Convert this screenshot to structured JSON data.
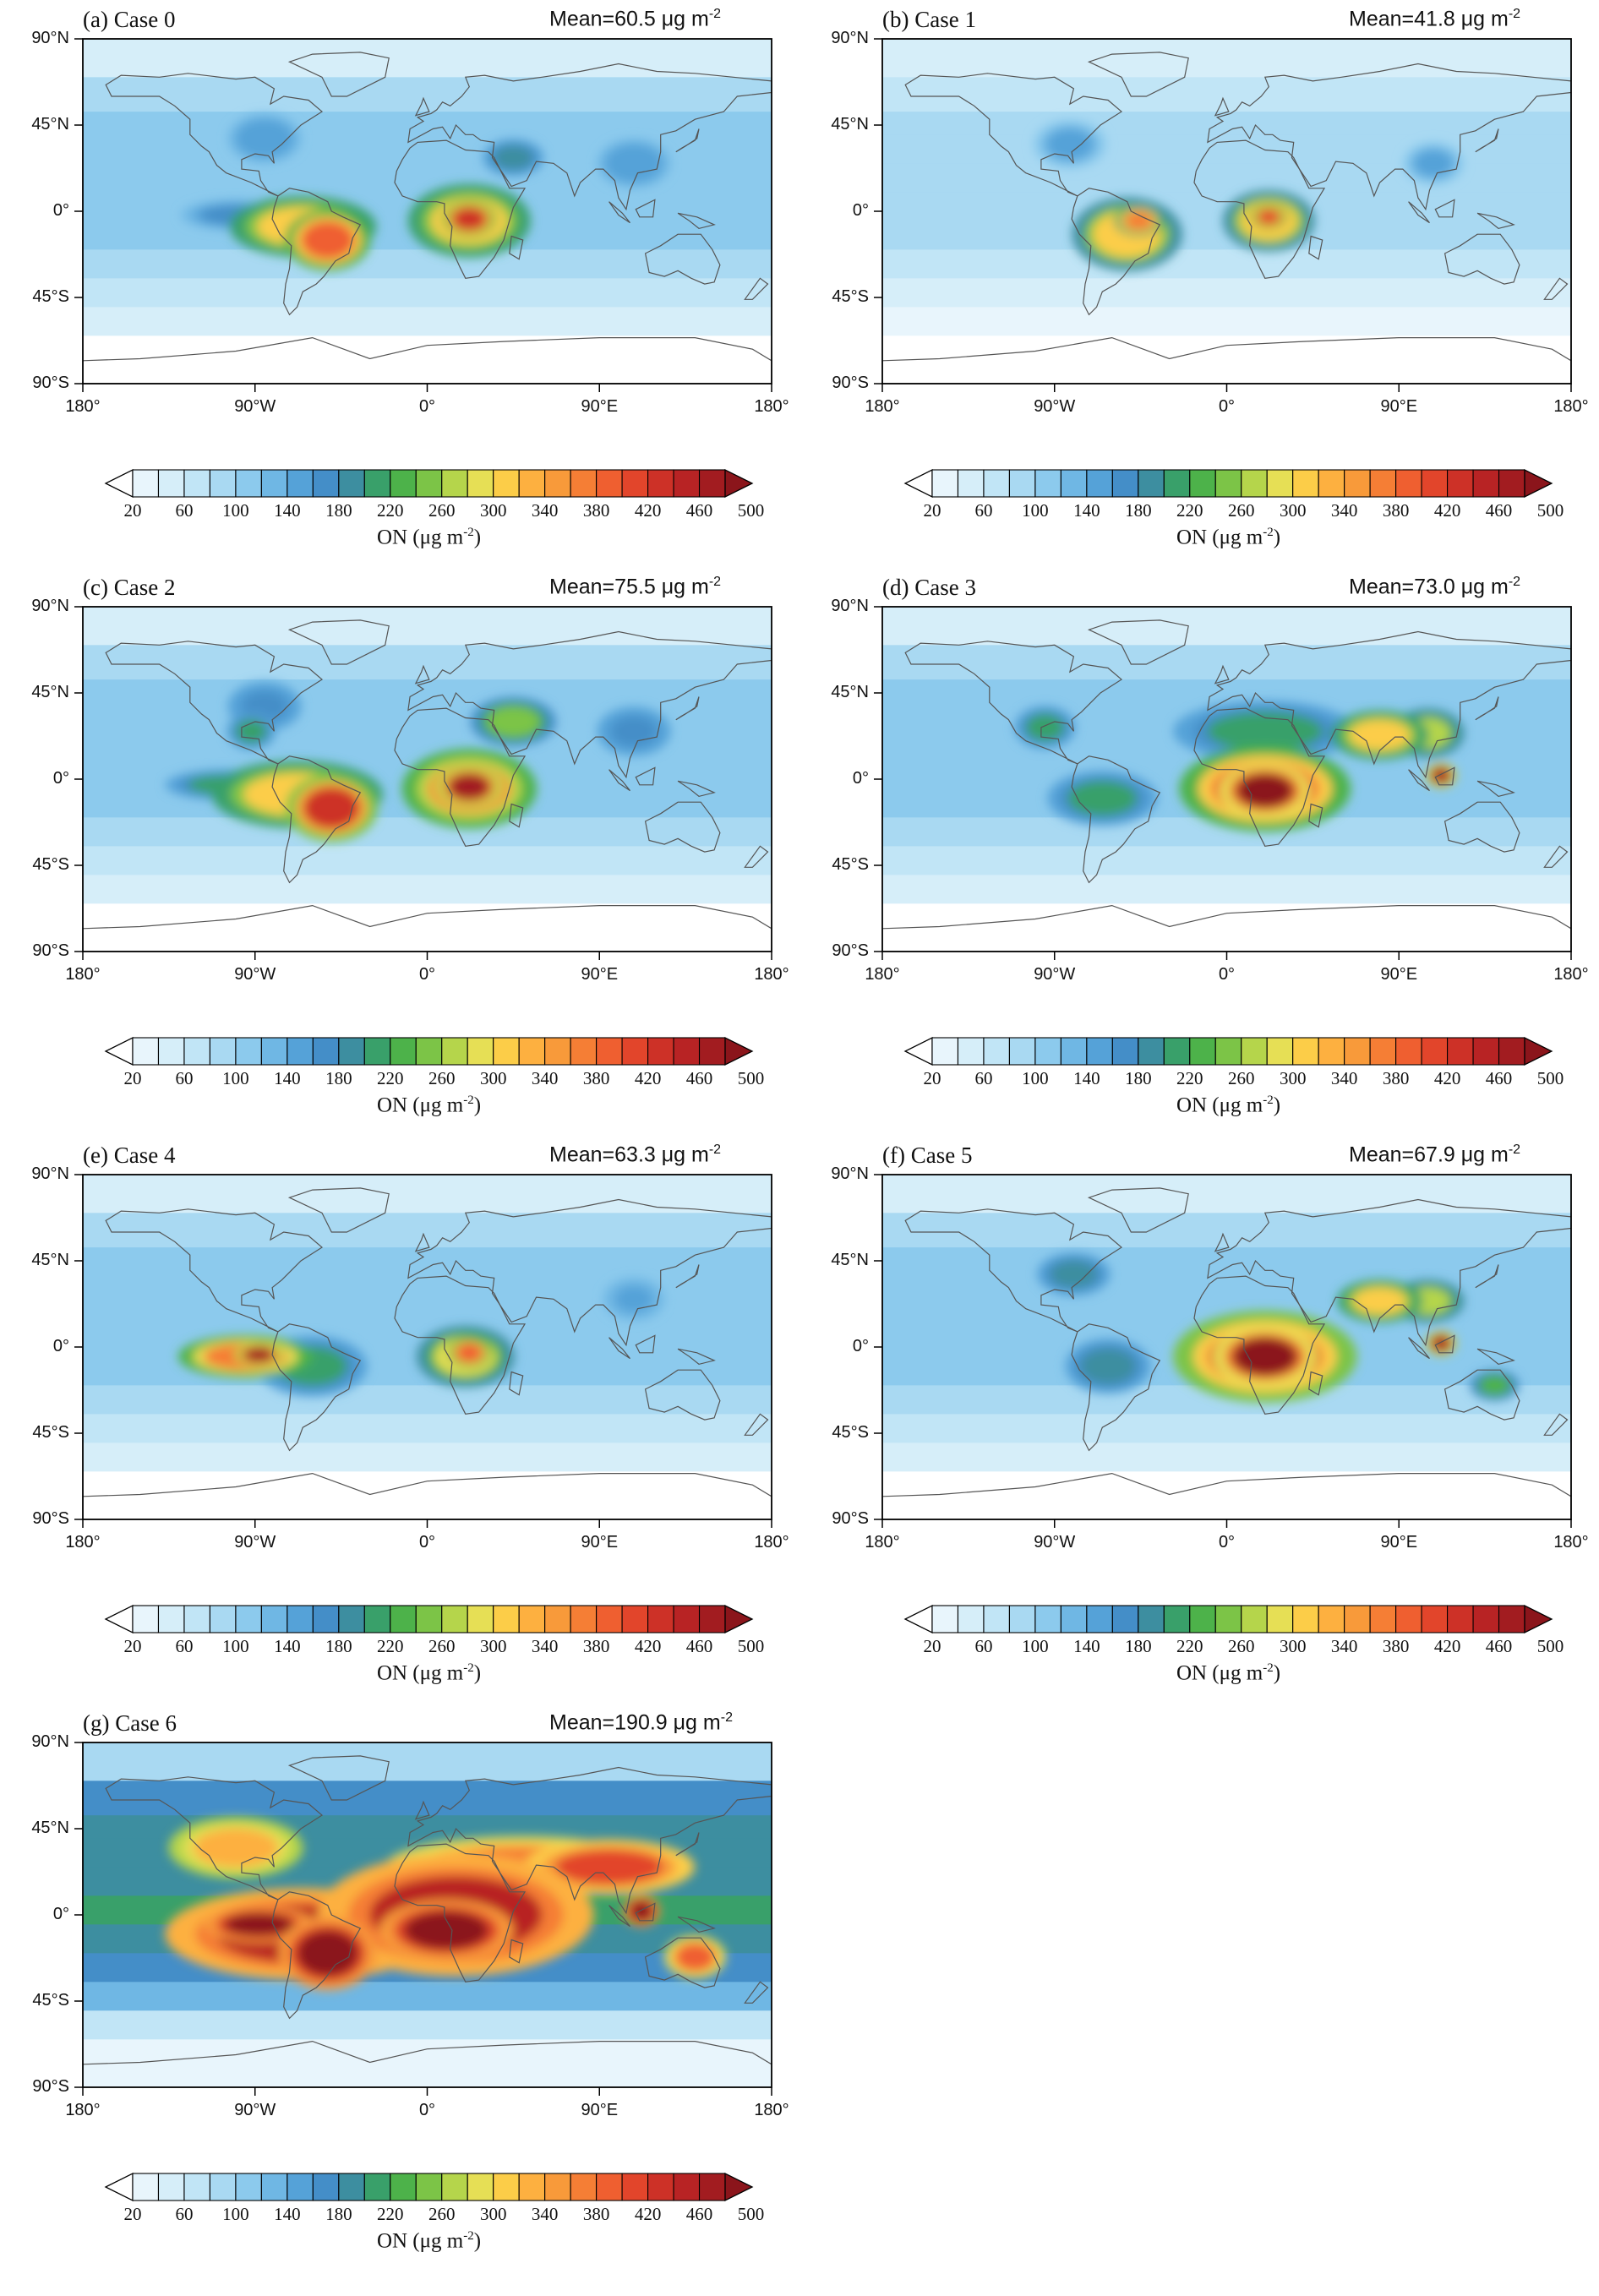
{
  "figure": {
    "colorbar": {
      "colors": [
        "#ffffff",
        "#e8f5fc",
        "#d6eef9",
        "#c1e5f6",
        "#a9d9f2",
        "#8ccaed",
        "#6fb7e4",
        "#55a2d8",
        "#448ec8",
        "#3d8ea0",
        "#39a06a",
        "#4db24a",
        "#7cc447",
        "#b5d54b",
        "#e6df55",
        "#fccd48",
        "#fdb040",
        "#f89a3a",
        "#f57e35",
        "#ef5f30",
        "#e2452b",
        "#cd3127",
        "#b82324",
        "#a21c20",
        "#8b151b"
      ],
      "tick_labels": [
        "20",
        "60",
        "100",
        "140",
        "180",
        "220",
        "260",
        "300",
        "340",
        "380",
        "420",
        "460",
        "500"
      ],
      "label": "ON (μg m",
      "label_exp": "-2",
      "label_close": ")"
    },
    "axes": {
      "lat_ticks": [
        "90°N",
        "45°N",
        "0°",
        "45°S",
        "90°S"
      ],
      "lon_ticks": [
        "180°",
        "90°W",
        "0°",
        "90°E",
        "180°"
      ]
    },
    "mean_prefix": "Mean=",
    "unit": "μg m",
    "unit_exp": "-2"
  },
  "panels": [
    {
      "label": "(a) Case 0",
      "mean": "60.5"
    },
    {
      "label": "(b) Case 1",
      "mean": "41.8"
    },
    {
      "label": "(c) Case 2",
      "mean": "75.5"
    },
    {
      "label": "(d) Case 3",
      "mean": "73.0"
    },
    {
      "label": "(e) Case 4",
      "mean": "63.3"
    },
    {
      "label": "(f) Case 5",
      "mean": "67.9"
    },
    {
      "label": "(g) Case 6",
      "mean": "190.9"
    }
  ],
  "chart_data": {
    "type": "heatmap",
    "variable": "ON",
    "units": "μg m-2",
    "color_levels": [
      20,
      40,
      60,
      80,
      100,
      120,
      140,
      160,
      180,
      200,
      220,
      240,
      260,
      280,
      300,
      320,
      340,
      360,
      380,
      400,
      420,
      440,
      460,
      480,
      500
    ],
    "xlim": [
      -180,
      180
    ],
    "ylim": [
      -90,
      90
    ],
    "panels": [
      {
        "name": "Case 0",
        "mean": 60.5,
        "hotspots": [
          {
            "lon": -65,
            "lat": -8,
            "rx": 24,
            "ry": 10,
            "v": 300
          },
          {
            "lon": -52,
            "lat": -15,
            "rx": 14,
            "ry": 10,
            "v": 380
          },
          {
            "lon": -100,
            "lat": -2,
            "rx": 18,
            "ry": 5,
            "v": 160
          },
          {
            "lon": -85,
            "lat": 38,
            "rx": 12,
            "ry": 8,
            "v": 150
          },
          {
            "lon": 22,
            "lat": -5,
            "rx": 20,
            "ry": 12,
            "v": 300
          },
          {
            "lon": 22,
            "lat": -4,
            "rx": 9,
            "ry": 6,
            "v": 420
          },
          {
            "lon": 45,
            "lat": 28,
            "rx": 10,
            "ry": 6,
            "v": 180
          },
          {
            "lon": 108,
            "lat": 25,
            "rx": 12,
            "ry": 8,
            "v": 150
          }
        ]
      },
      {
        "name": "Case 1",
        "mean": 41.8,
        "hotspots": [
          {
            "lon": -52,
            "lat": -12,
            "rx": 18,
            "ry": 12,
            "v": 300
          },
          {
            "lon": -46,
            "lat": -5,
            "rx": 8,
            "ry": 5,
            "v": 360
          },
          {
            "lon": -82,
            "lat": 35,
            "rx": 12,
            "ry": 8,
            "v": 140
          },
          {
            "lon": 22,
            "lat": -5,
            "rx": 15,
            "ry": 10,
            "v": 300
          },
          {
            "lon": 22,
            "lat": -3,
            "rx": 6,
            "ry": 4,
            "v": 400
          },
          {
            "lon": 108,
            "lat": 25,
            "rx": 10,
            "ry": 7,
            "v": 140
          }
        ]
      },
      {
        "name": "Case 2",
        "mean": 75.5,
        "hotspots": [
          {
            "lon": -68,
            "lat": -8,
            "rx": 28,
            "ry": 11,
            "v": 300
          },
          {
            "lon": -50,
            "lat": -15,
            "rx": 15,
            "ry": 11,
            "v": 420
          },
          {
            "lon": -105,
            "lat": -3,
            "rx": 20,
            "ry": 5,
            "v": 200
          },
          {
            "lon": -92,
            "lat": 25,
            "rx": 8,
            "ry": 6,
            "v": 200
          },
          {
            "lon": -85,
            "lat": 38,
            "rx": 12,
            "ry": 8,
            "v": 160
          },
          {
            "lon": 22,
            "lat": -5,
            "rx": 22,
            "ry": 13,
            "v": 340
          },
          {
            "lon": 22,
            "lat": -4,
            "rx": 11,
            "ry": 7,
            "v": 460
          },
          {
            "lon": 45,
            "lat": 30,
            "rx": 14,
            "ry": 8,
            "v": 240
          },
          {
            "lon": 108,
            "lat": 25,
            "rx": 12,
            "ry": 8,
            "v": 160
          }
        ]
      },
      {
        "name": "Case 3",
        "mean": 73.0,
        "hotspots": [
          {
            "lon": 20,
            "lat": -5,
            "rx": 28,
            "ry": 14,
            "v": 380
          },
          {
            "lon": 20,
            "lat": -6,
            "rx": 15,
            "ry": 9,
            "v": 480
          },
          {
            "lon": 80,
            "lat": 23,
            "rx": 16,
            "ry": 8,
            "v": 300
          },
          {
            "lon": 105,
            "lat": 24,
            "rx": 12,
            "ry": 8,
            "v": 260
          },
          {
            "lon": 112,
            "lat": 2,
            "rx": 5,
            "ry": 4,
            "v": 460
          },
          {
            "lon": -95,
            "lat": 27,
            "rx": 10,
            "ry": 7,
            "v": 200
          },
          {
            "lon": -65,
            "lat": -10,
            "rx": 18,
            "ry": 9,
            "v": 200
          },
          {
            "lon": 20,
            "lat": 25,
            "rx": 30,
            "ry": 10,
            "v": 200
          }
        ]
      },
      {
        "name": "Case 4",
        "mean": 63.3,
        "hotspots": [
          {
            "lon": -95,
            "lat": -5,
            "rx": 22,
            "ry": 7,
            "v": 360
          },
          {
            "lon": -88,
            "lat": -4,
            "rx": 8,
            "ry": 4,
            "v": 460
          },
          {
            "lon": -60,
            "lat": -10,
            "rx": 18,
            "ry": 10,
            "v": 200
          },
          {
            "lon": 20,
            "lat": -5,
            "rx": 16,
            "ry": 10,
            "v": 280
          },
          {
            "lon": 22,
            "lat": -3,
            "rx": 7,
            "ry": 5,
            "v": 380
          },
          {
            "lon": 108,
            "lat": 25,
            "rx": 10,
            "ry": 7,
            "v": 140
          }
        ]
      },
      {
        "name": "Case 5",
        "mean": 67.9,
        "hotspots": [
          {
            "lon": 20,
            "lat": -5,
            "rx": 30,
            "ry": 15,
            "v": 400
          },
          {
            "lon": 20,
            "lat": -5,
            "rx": 17,
            "ry": 10,
            "v": 480
          },
          {
            "lon": 80,
            "lat": 24,
            "rx": 14,
            "ry": 7,
            "v": 300
          },
          {
            "lon": 105,
            "lat": 24,
            "rx": 12,
            "ry": 7,
            "v": 260
          },
          {
            "lon": 112,
            "lat": 2,
            "rx": 5,
            "ry": 4,
            "v": 460
          },
          {
            "lon": 140,
            "lat": -20,
            "rx": 8,
            "ry": 5,
            "v": 220
          },
          {
            "lon": -80,
            "lat": 38,
            "rx": 12,
            "ry": 7,
            "v": 180
          },
          {
            "lon": -62,
            "lat": -10,
            "rx": 14,
            "ry": 9,
            "v": 180
          }
        ]
      },
      {
        "name": "Case 6",
        "mean": 190.9,
        "hotspots": [
          {
            "lon": -65,
            "lat": -10,
            "rx": 45,
            "ry": 15,
            "v": 440
          },
          {
            "lon": -88,
            "lat": -5,
            "rx": 18,
            "ry": 6,
            "v": 480
          },
          {
            "lon": -52,
            "lat": -20,
            "rx": 16,
            "ry": 12,
            "v": 480
          },
          {
            "lon": 15,
            "lat": 0,
            "rx": 45,
            "ry": 20,
            "v": 440
          },
          {
            "lon": 10,
            "lat": -8,
            "rx": 22,
            "ry": 10,
            "v": 480
          },
          {
            "lon": 50,
            "lat": 25,
            "rx": 45,
            "ry": 10,
            "v": 360
          },
          {
            "lon": 95,
            "lat": 25,
            "rx": 28,
            "ry": 9,
            "v": 400
          },
          {
            "lon": 112,
            "lat": 2,
            "rx": 6,
            "ry": 5,
            "v": 480
          },
          {
            "lon": 140,
            "lat": -22,
            "rx": 10,
            "ry": 7,
            "v": 380
          },
          {
            "lon": -100,
            "lat": 35,
            "rx": 22,
            "ry": 10,
            "v": 320
          }
        ]
      }
    ]
  }
}
